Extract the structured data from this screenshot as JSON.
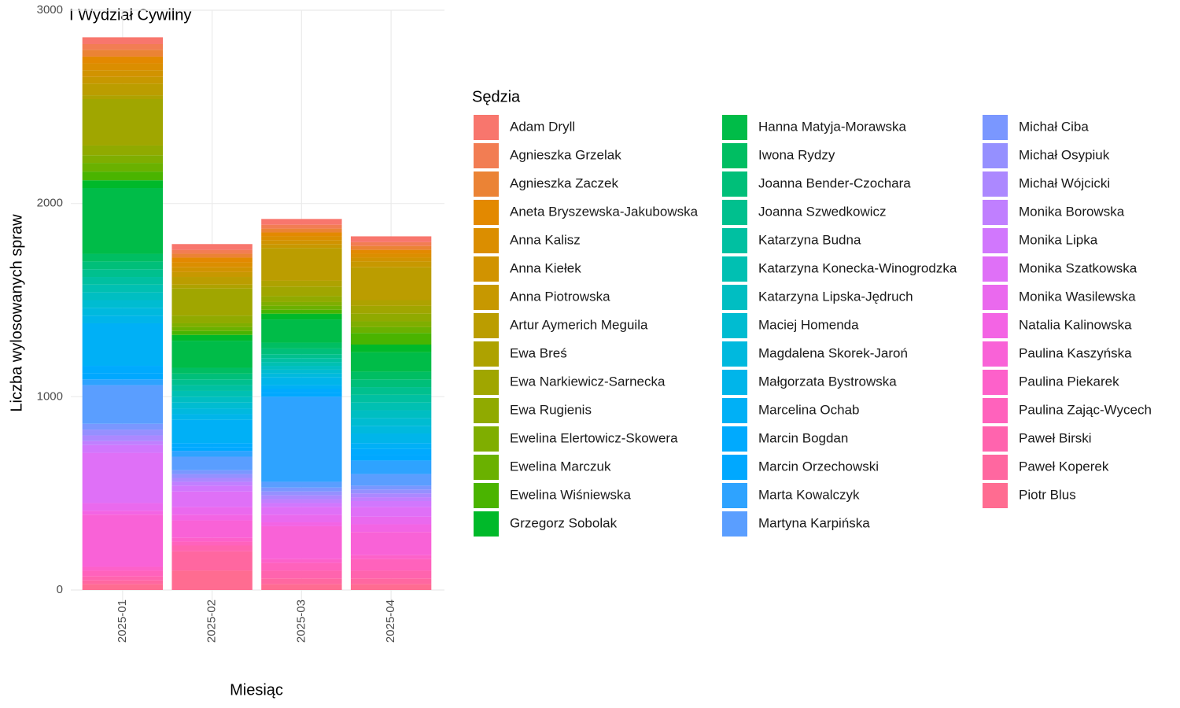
{
  "chart_data": {
    "type": "bar",
    "stacked": true,
    "title": "I Wydział Cywilny",
    "x_label": "Miesiąc",
    "y_label": "Liczba wylosowanych spraw",
    "legend_title": "Sędzia",
    "categories": [
      "2025-01",
      "2025-02",
      "2025-03",
      "2025-04"
    ],
    "ylim": [
      0,
      3000
    ],
    "yticks": [
      0,
      1000,
      2000,
      3000
    ],
    "grid": true,
    "series": [
      {
        "name": "Adam Dryll",
        "color": "#F8766D",
        "values": [
          35,
          30,
          30,
          30
        ]
      },
      {
        "name": "Agnieszka Grzelak",
        "color": "#F27D53",
        "values": [
          30,
          20,
          20,
          20
        ]
      },
      {
        "name": "Agnieszka Zaczek",
        "color": "#EB8335",
        "values": [
          35,
          20,
          20,
          20
        ]
      },
      {
        "name": "Aneta Bryszewska-Jakubowska",
        "color": "#E38900",
        "values": [
          35,
          25,
          20,
          20
        ]
      },
      {
        "name": "Anna Kalisz",
        "color": "#DB8E00",
        "values": [
          35,
          25,
          20,
          20
        ]
      },
      {
        "name": "Anna Kiełek",
        "color": "#D19300",
        "values": [
          35,
          25,
          20,
          20
        ]
      },
      {
        "name": "Anna Piotrowska",
        "color": "#C79800",
        "values": [
          35,
          25,
          20,
          30
        ]
      },
      {
        "name": "Artur Aymerich Meguila",
        "color": "#BB9D00",
        "values": [
          60,
          40,
          170,
          170
        ]
      },
      {
        "name": "Ewa Breś",
        "color": "#AEA200",
        "values": [
          20,
          20,
          30,
          30
        ]
      },
      {
        "name": "Ewa Narkiewicz-Sarnecka",
        "color": "#A0A600",
        "values": [
          240,
          140,
          50,
          40
        ]
      },
      {
        "name": "Ewa Rugienis",
        "color": "#90AA00",
        "values": [
          50,
          40,
          30,
          40
        ]
      },
      {
        "name": "Ewelina Elertowicz-Skowera",
        "color": "#7FAE00",
        "values": [
          40,
          20,
          20,
          30
        ]
      },
      {
        "name": "Ewelina Marczuk",
        "color": "#6AB100",
        "values": [
          45,
          20,
          20,
          30
        ]
      },
      {
        "name": "Ewelina Wiśniewska",
        "color": "#4AB400",
        "values": [
          45,
          20,
          20,
          60
        ]
      },
      {
        "name": "Grzegorz Sobolak",
        "color": "#00B92A",
        "values": [
          40,
          30,
          30,
          40
        ]
      },
      {
        "name": "Hanna Matyja-Morawska",
        "color": "#00BC48",
        "values": [
          340,
          140,
          120,
          100
        ]
      },
      {
        "name": "Iwona Rydzy",
        "color": "#00BE62",
        "values": [
          40,
          30,
          30,
          40
        ]
      },
      {
        "name": "Joanna Bender-Czochara",
        "color": "#00BF79",
        "values": [
          40,
          30,
          30,
          40
        ]
      },
      {
        "name": "Joanna Szwedkowicz",
        "color": "#00C08E",
        "values": [
          40,
          30,
          20,
          40
        ]
      },
      {
        "name": "Katarzyna Budna",
        "color": "#00C0A1",
        "values": [
          40,
          30,
          20,
          40
        ]
      },
      {
        "name": "Katarzyna Konecka-Winogrodzka",
        "color": "#00C0B2",
        "values": [
          40,
          30,
          20,
          40
        ]
      },
      {
        "name": "Katarzyna Lipska-Jędruch",
        "color": "#00BEC2",
        "values": [
          40,
          30,
          20,
          40
        ]
      },
      {
        "name": "Maciej Homenda",
        "color": "#00BCD1",
        "values": [
          40,
          30,
          20,
          40
        ]
      },
      {
        "name": "Magdalena Skorek-Jaroń",
        "color": "#00B9DE",
        "values": [
          40,
          30,
          20,
          40
        ]
      },
      {
        "name": "Małgorzata Bystrowska",
        "color": "#00B5EA",
        "values": [
          40,
          30,
          40,
          50
        ]
      },
      {
        "name": "Marcelina Ochab",
        "color": "#00B0F6",
        "values": [
          220,
          120,
          20,
          30
        ]
      },
      {
        "name": "Marcin Bogdan",
        "color": "#00AAFE",
        "values": [
          40,
          20,
          20,
          30
        ]
      },
      {
        "name": "Marcin Orzechowski",
        "color": "#00A8FF",
        "values": [
          30,
          20,
          20,
          30
        ]
      },
      {
        "name": "Marta Kowalczyk",
        "color": "#2EA3FF",
        "values": [
          30,
          30,
          440,
          70
        ]
      },
      {
        "name": "Martyna Karpińska",
        "color": "#5A9EFF",
        "values": [
          200,
          70,
          30,
          60
        ]
      },
      {
        "name": "Michał Ciba",
        "color": "#7A97FF",
        "values": [
          30,
          20,
          20,
          20
        ]
      },
      {
        "name": "Michał Osypiuk",
        "color": "#9590FF",
        "values": [
          30,
          20,
          20,
          20
        ]
      },
      {
        "name": "Michał Wójcicki",
        "color": "#AC88FF",
        "values": [
          30,
          20,
          20,
          20
        ]
      },
      {
        "name": "Monika Borowska",
        "color": "#C07FFF",
        "values": [
          20,
          20,
          20,
          20
        ]
      },
      {
        "name": "Monika Lipka",
        "color": "#D177FD",
        "values": [
          40,
          30,
          20,
          30
        ]
      },
      {
        "name": "Monika Szatkowska",
        "color": "#DF70F7",
        "values": [
          260,
          80,
          40,
          50
        ]
      },
      {
        "name": "Monika Wasilewska",
        "color": "#EA69EE",
        "values": [
          40,
          40,
          40,
          40
        ]
      },
      {
        "name": "Natalia Kalinowska",
        "color": "#F364E4",
        "values": [
          20,
          30,
          20,
          40
        ]
      },
      {
        "name": "Paulina Kaszyńska",
        "color": "#F962D7",
        "values": [
          270,
          90,
          170,
          120
        ]
      },
      {
        "name": "Paulina Piekarek",
        "color": "#FD61CA",
        "values": [
          20,
          20,
          20,
          20
        ]
      },
      {
        "name": "Paulina Zając-Wycech",
        "color": "#FF62BC",
        "values": [
          30,
          20,
          40,
          60
        ]
      },
      {
        "name": "Paweł Birski",
        "color": "#FF64AE",
        "values": [
          20,
          30,
          40,
          40
        ]
      },
      {
        "name": "Paweł Koperek",
        "color": "#FF67A0",
        "values": [
          20,
          100,
          30,
          30
        ]
      },
      {
        "name": "Piotr Blus",
        "color": "#FF6C91",
        "values": [
          30,
          100,
          30,
          30
        ]
      }
    ]
  }
}
